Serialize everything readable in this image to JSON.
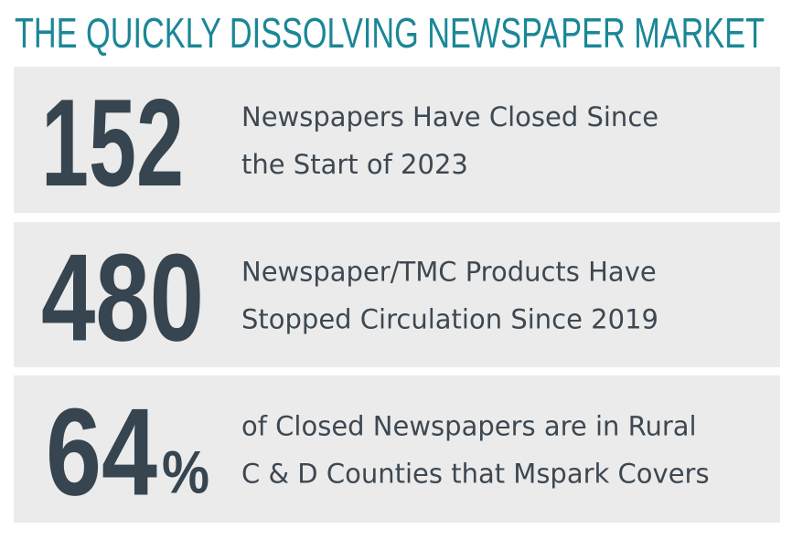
{
  "header": {
    "title": "THE QUICKLY DISSOLVING NEWSPAPER MARKET"
  },
  "stats": [
    {
      "number": 152,
      "lines": [
        "Newspapers Have Closed Since",
        "the Start of 2023"
      ]
    },
    {
      "number": 480,
      "lines": [
        "Newspaper/TMC Products Have",
        "Stopped Circulation Since 2019"
      ]
    },
    {
      "number": 64,
      "unit": "%",
      "lines": [
        "of Closed Newspapers are in Rural",
        "C & D Counties that Mspark Covers"
      ]
    }
  ]
}
